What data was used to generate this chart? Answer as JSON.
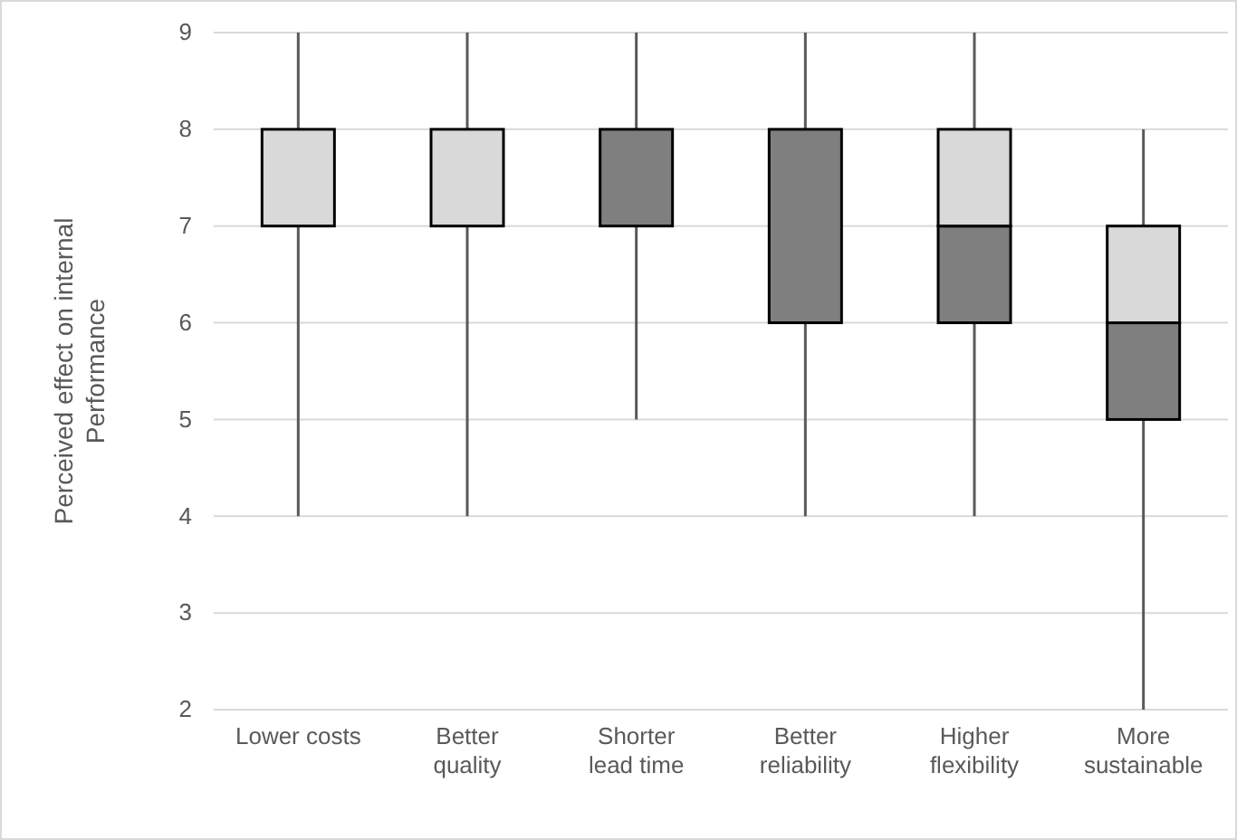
{
  "chart_data": {
    "type": "box",
    "ylabel": "Perceived effect on internal Performance",
    "categories": [
      "Lower costs",
      "Better quality",
      "Shorter lead time",
      "Better reliability",
      "Higher flexibility",
      "More sustainable"
    ],
    "boxes": [
      {
        "low": 4,
        "q1": 7,
        "median": 7,
        "q3": 8,
        "high": 9
      },
      {
        "low": 4,
        "q1": 7,
        "median": 7,
        "q3": 8,
        "high": 9
      },
      {
        "low": 5,
        "q1": 7,
        "median": 8,
        "q3": 8,
        "high": 9
      },
      {
        "low": 4,
        "q1": 6,
        "median": 8,
        "q3": 8,
        "high": 9
      },
      {
        "low": 4,
        "q1": 6,
        "median": 7,
        "q3": 8,
        "high": 9
      },
      {
        "low": 2,
        "q1": 5,
        "median": 6,
        "q3": 7,
        "high": 8
      }
    ],
    "ylim": [
      2,
      9
    ],
    "yticks": [
      2,
      3,
      4,
      5,
      6,
      7,
      8,
      9
    ],
    "grid": "y"
  }
}
